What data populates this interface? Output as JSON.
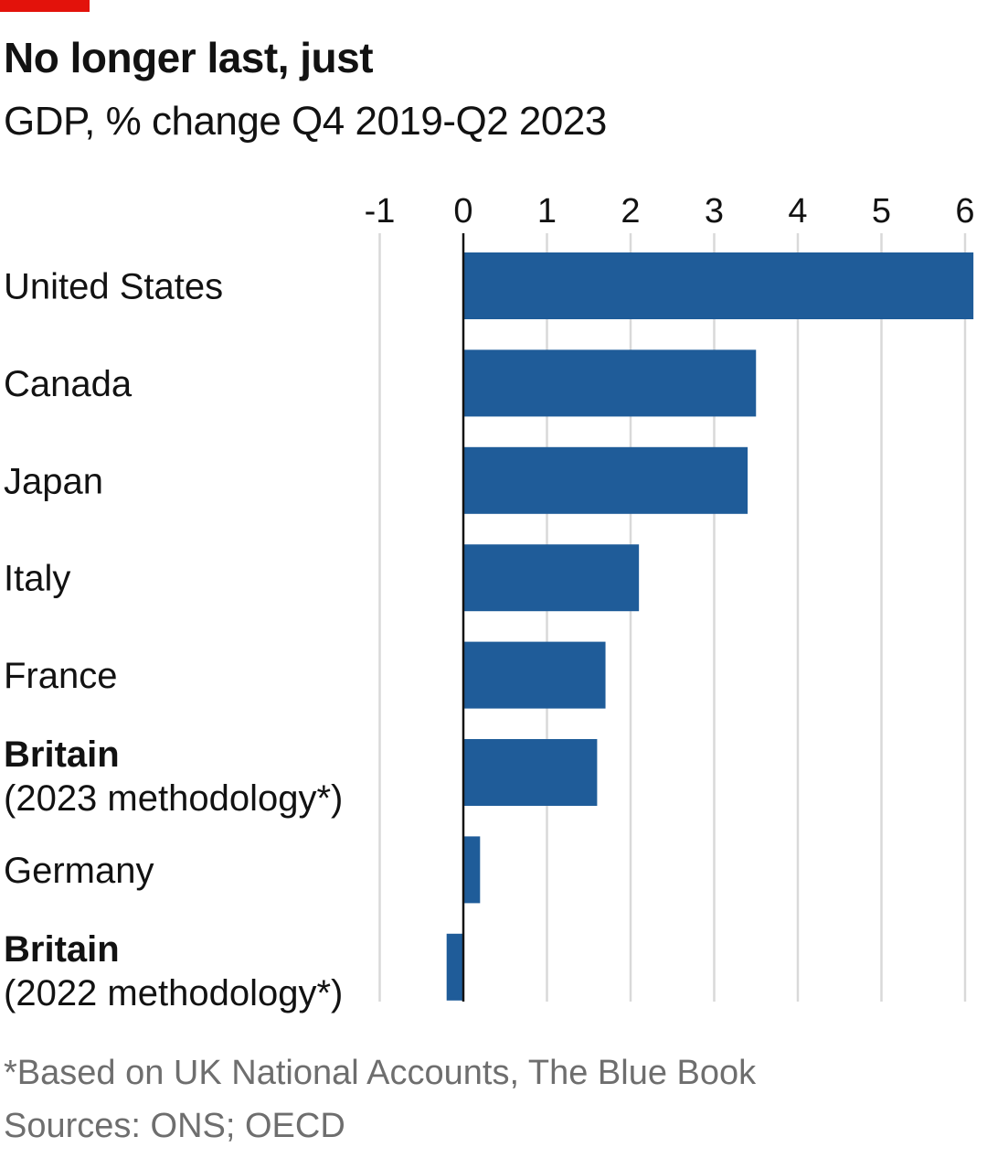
{
  "title": "No longer last, just",
  "subtitle": "GDP, % change Q4 2019-Q2 2023",
  "footnote": "*Based on UK National Accounts, The Blue Book",
  "source": "Sources: ONS; OECD",
  "colors": {
    "accent": "#e3120b",
    "bar": "#1f5c99",
    "grid": "#d9d9d9",
    "zero_line": "#121212",
    "muted_text": "#6e6e6e"
  },
  "chart_data": {
    "type": "bar",
    "orientation": "horizontal",
    "xlim": [
      -1,
      6
    ],
    "ticks": [
      "-1",
      "0",
      "1",
      "2",
      "3",
      "4",
      "5",
      "6"
    ],
    "tick_values": [
      -1,
      0,
      1,
      2,
      3,
      4,
      5,
      6
    ],
    "grid": true,
    "categories": [
      {
        "line1": "United States",
        "line2": "",
        "bold": false
      },
      {
        "line1": "Canada",
        "line2": "",
        "bold": false
      },
      {
        "line1": "Japan",
        "line2": "",
        "bold": false
      },
      {
        "line1": "Italy",
        "line2": "",
        "bold": false
      },
      {
        "line1": "France",
        "line2": "",
        "bold": false
      },
      {
        "line1": "Britain",
        "line2": "(2023 methodology*)",
        "bold": true
      },
      {
        "line1": "Germany",
        "line2": "",
        "bold": false
      },
      {
        "line1": "Britain",
        "line2": "(2022 methodology*)",
        "bold": true
      }
    ],
    "values": [
      6.1,
      3.5,
      3.4,
      2.1,
      1.7,
      1.6,
      0.2,
      -0.2
    ]
  }
}
